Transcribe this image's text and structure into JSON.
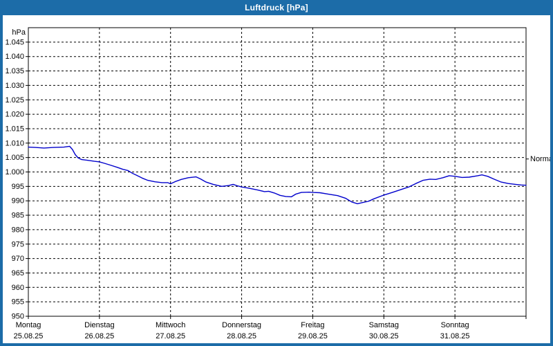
{
  "window": {
    "title": "Luftdruck [hPa]"
  },
  "colors": {
    "chrome_blue": "#1c6ca8",
    "plot_background": "#ffffff",
    "grid": "#000000",
    "line": "#0000cc",
    "text": "#000000",
    "title_text": "#ffffff"
  },
  "chart_data": {
    "type": "line",
    "title": "Luftdruck [hPa]",
    "unit_label": "hPa",
    "ylim": [
      950,
      1050
    ],
    "x_range_days": [
      0,
      7
    ],
    "grid": true,
    "y_ticks": [
      {
        "value": 1045,
        "label": "1.045"
      },
      {
        "value": 1040,
        "label": "1.040"
      },
      {
        "value": 1035,
        "label": "1.035"
      },
      {
        "value": 1030,
        "label": "1.030"
      },
      {
        "value": 1025,
        "label": "1.025"
      },
      {
        "value": 1020,
        "label": "1.020"
      },
      {
        "value": 1015,
        "label": "1.015"
      },
      {
        "value": 1010,
        "label": "1.010"
      },
      {
        "value": 1005,
        "label": "1.005"
      },
      {
        "value": 1000,
        "label": "1.000"
      },
      {
        "value": 995,
        "label": "995"
      },
      {
        "value": 990,
        "label": "990"
      },
      {
        "value": 985,
        "label": "985"
      },
      {
        "value": 980,
        "label": "980"
      },
      {
        "value": 975,
        "label": "975"
      },
      {
        "value": 970,
        "label": "970"
      },
      {
        "value": 965,
        "label": "965"
      },
      {
        "value": 960,
        "label": "960"
      },
      {
        "value": 955,
        "label": "955"
      },
      {
        "value": 950,
        "label": "950"
      }
    ],
    "x_days": [
      {
        "name": "Montag",
        "date": "25.08.25"
      },
      {
        "name": "Dienstag",
        "date": "26.08.25"
      },
      {
        "name": "Mittwoch",
        "date": "27.08.25"
      },
      {
        "name": "Donnerstag",
        "date": "28.08.25"
      },
      {
        "name": "Freitag",
        "date": "29.08.25"
      },
      {
        "name": "Samstag",
        "date": "30.08.25"
      },
      {
        "name": "Sonntag",
        "date": "31.08.25"
      }
    ],
    "normal_marker": {
      "label": "Normal",
      "value": 1004.5
    },
    "series": [
      {
        "name": "Luftdruck",
        "color": "#0000cc",
        "points": [
          [
            0.0,
            1008.6
          ],
          [
            0.1,
            1008.5
          ],
          [
            0.22,
            1008.3
          ],
          [
            0.35,
            1008.5
          ],
          [
            0.5,
            1008.6
          ],
          [
            0.58,
            1008.9
          ],
          [
            0.62,
            1007.8
          ],
          [
            0.66,
            1006.0
          ],
          [
            0.7,
            1004.9
          ],
          [
            0.75,
            1004.3
          ],
          [
            0.82,
            1004.1
          ],
          [
            0.93,
            1003.7
          ],
          [
            1.0,
            1003.5
          ],
          [
            1.07,
            1003.0
          ],
          [
            1.15,
            1002.4
          ],
          [
            1.25,
            1001.6
          ],
          [
            1.33,
            1000.9
          ],
          [
            1.4,
            1000.5
          ],
          [
            1.46,
            999.6
          ],
          [
            1.52,
            998.9
          ],
          [
            1.6,
            997.9
          ],
          [
            1.68,
            997.1
          ],
          [
            1.78,
            996.6
          ],
          [
            1.88,
            996.3
          ],
          [
            1.96,
            996.3
          ],
          [
            2.0,
            995.9
          ],
          [
            2.06,
            996.6
          ],
          [
            2.15,
            997.4
          ],
          [
            2.25,
            998.0
          ],
          [
            2.36,
            998.3
          ],
          [
            2.42,
            997.6
          ],
          [
            2.5,
            996.5
          ],
          [
            2.6,
            995.7
          ],
          [
            2.72,
            995.0
          ],
          [
            2.82,
            995.3
          ],
          [
            2.88,
            995.7
          ],
          [
            2.94,
            995.2
          ],
          [
            3.0,
            994.8
          ],
          [
            3.1,
            994.4
          ],
          [
            3.22,
            993.8
          ],
          [
            3.32,
            993.2
          ],
          [
            3.38,
            993.3
          ],
          [
            3.46,
            992.7
          ],
          [
            3.54,
            991.9
          ],
          [
            3.62,
            991.5
          ],
          [
            3.7,
            991.4
          ],
          [
            3.76,
            992.3
          ],
          [
            3.84,
            992.9
          ],
          [
            3.95,
            993.0
          ],
          [
            4.0,
            992.9
          ],
          [
            4.1,
            992.8
          ],
          [
            4.22,
            992.3
          ],
          [
            4.35,
            991.8
          ],
          [
            4.46,
            990.9
          ],
          [
            4.55,
            989.6
          ],
          [
            4.63,
            989.0
          ],
          [
            4.7,
            989.4
          ],
          [
            4.78,
            989.8
          ],
          [
            4.86,
            990.7
          ],
          [
            5.0,
            992.0
          ],
          [
            5.12,
            992.9
          ],
          [
            5.24,
            993.9
          ],
          [
            5.35,
            994.8
          ],
          [
            5.45,
            996.0
          ],
          [
            5.55,
            997.1
          ],
          [
            5.65,
            997.5
          ],
          [
            5.73,
            997.4
          ],
          [
            5.83,
            998.0
          ],
          [
            5.92,
            998.7
          ],
          [
            6.0,
            998.5
          ],
          [
            6.1,
            998.1
          ],
          [
            6.2,
            998.2
          ],
          [
            6.32,
            998.7
          ],
          [
            6.38,
            999.0
          ],
          [
            6.46,
            998.5
          ],
          [
            6.55,
            997.5
          ],
          [
            6.65,
            996.5
          ],
          [
            6.75,
            996.0
          ],
          [
            6.85,
            995.7
          ],
          [
            6.93,
            995.5
          ],
          [
            7.0,
            995.4
          ]
        ]
      }
    ]
  }
}
